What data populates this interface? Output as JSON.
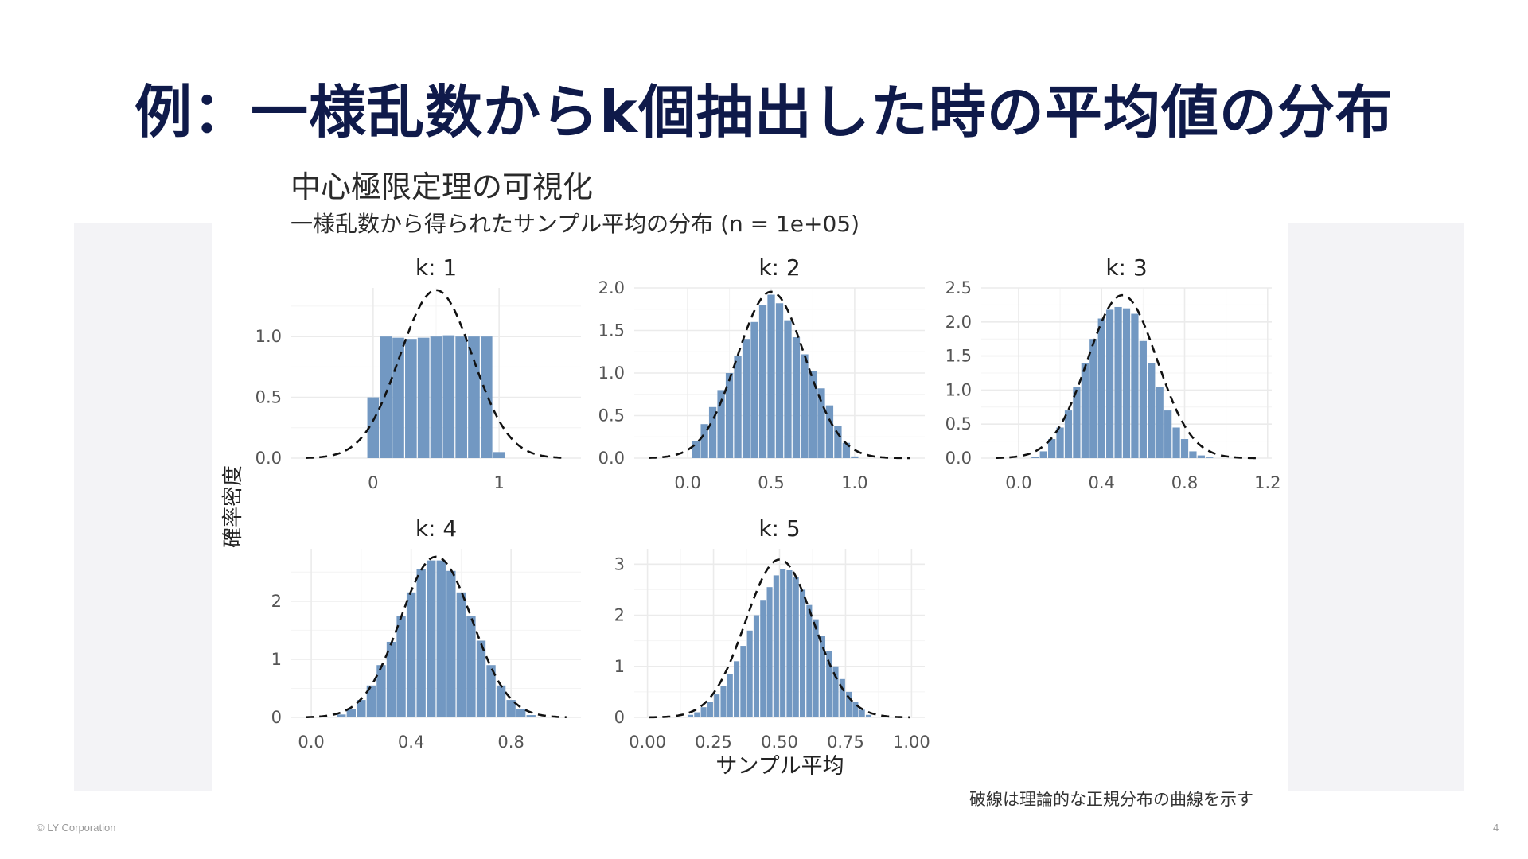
{
  "slide": {
    "title": "例：一様乱数からk個抽出した時の平均値の分布",
    "copyright": "© LY Corporation",
    "page_number": "4",
    "footnote": "破線は理論的な正規分布の曲線を示す"
  },
  "colors": {
    "bar": "#7298c2",
    "curve": "#111111",
    "grid": "#ebebeb",
    "title": "#0f1a4a",
    "panel": "#f3f3f6"
  },
  "chart_data": {
    "type": "bar",
    "title": "中心極限定理の可視化",
    "subtitle": "一様乱数から得られたサンプル平均の分布 (n = 1e+05)",
    "xlabel": "サンプル平均",
    "ylabel": "確率密度",
    "grid": true,
    "overlay": "normal density curve (dashed)",
    "facets": [
      {
        "label": "k: 1",
        "xlim": [
          -0.65,
          1.65
        ],
        "ylim": [
          0,
          1.4
        ],
        "xticks": [
          0,
          1
        ],
        "xtick_labels": [
          "0",
          "1"
        ],
        "yticks": [
          0,
          0.5,
          1.0
        ],
        "ytick_labels": [
          "0.0",
          "0.5",
          "1.0"
        ],
        "bin_width": 0.1,
        "bin_starts": [
          -0.05,
          0.05,
          0.15,
          0.25,
          0.35,
          0.45,
          0.55,
          0.65,
          0.75,
          0.85,
          0.95
        ],
        "densities": [
          0.5,
          1.0,
          0.99,
          0.98,
          0.99,
          1.0,
          1.01,
          1.0,
          1.0,
          1.0,
          0.05
        ],
        "normal_mean": 0.5,
        "normal_sd": 0.2887
      },
      {
        "label": "k: 2",
        "xlim": [
          -0.32,
          1.42
        ],
        "ylim": [
          0,
          2.0
        ],
        "xticks": [
          0,
          0.5,
          1.0
        ],
        "xtick_labels": [
          "0.0",
          "0.5",
          "1.0"
        ],
        "yticks": [
          0,
          0.5,
          1.0,
          1.5,
          2.0
        ],
        "ytick_labels": [
          "0.0",
          "0.5",
          "1.0",
          "1.5",
          "2.0"
        ],
        "bin_width": 0.05,
        "bin_starts": [
          0.025,
          0.075,
          0.125,
          0.175,
          0.225,
          0.275,
          0.325,
          0.375,
          0.425,
          0.475,
          0.525,
          0.575,
          0.625,
          0.675,
          0.725,
          0.775,
          0.825,
          0.875,
          0.925,
          0.975
        ],
        "densities": [
          0.2,
          0.4,
          0.6,
          0.8,
          1.0,
          1.2,
          1.4,
          1.6,
          1.8,
          1.92,
          1.82,
          1.62,
          1.42,
          1.22,
          1.02,
          0.82,
          0.62,
          0.38,
          0.18,
          0.02
        ],
        "normal_mean": 0.5,
        "normal_sd": 0.2041
      },
      {
        "label": "k: 3",
        "xlim": [
          -0.18,
          1.22
        ],
        "ylim": [
          0,
          2.5
        ],
        "xticks": [
          0,
          0.4,
          0.8,
          1.2
        ],
        "xtick_labels": [
          "0.0",
          "0.4",
          "0.8",
          "1.2"
        ],
        "yticks": [
          0,
          0.5,
          1.0,
          1.5,
          2.0,
          2.5
        ],
        "ytick_labels": [
          "0.0",
          "0.5",
          "1.0",
          "1.5",
          "2.0",
          "2.5"
        ],
        "bin_width": 0.04,
        "bin_starts": [
          0.06,
          0.1,
          0.14,
          0.18,
          0.22,
          0.26,
          0.3,
          0.34,
          0.38,
          0.42,
          0.46,
          0.5,
          0.54,
          0.58,
          0.62,
          0.66,
          0.7,
          0.74,
          0.78,
          0.82,
          0.86,
          0.9
        ],
        "densities": [
          0.02,
          0.1,
          0.28,
          0.45,
          0.7,
          1.05,
          1.4,
          1.75,
          2.05,
          2.18,
          2.22,
          2.2,
          2.12,
          1.72,
          1.4,
          1.05,
          0.7,
          0.45,
          0.28,
          0.1,
          0.04,
          0.01
        ],
        "normal_mean": 0.5,
        "normal_sd": 0.1667
      },
      {
        "label": "k: 4",
        "xlim": [
          -0.08,
          1.08
        ],
        "ylim": [
          0,
          2.9
        ],
        "xticks": [
          0,
          0.4,
          0.8
        ],
        "xtick_labels": [
          "0.0",
          "0.4",
          "0.8"
        ],
        "yticks": [
          0,
          1,
          2
        ],
        "ytick_labels": [
          "0",
          "1",
          "2"
        ],
        "bin_width": 0.04,
        "bin_starts": [
          0.1,
          0.14,
          0.18,
          0.22,
          0.26,
          0.3,
          0.34,
          0.38,
          0.42,
          0.46,
          0.5,
          0.54,
          0.58,
          0.62,
          0.66,
          0.7,
          0.74,
          0.78,
          0.82,
          0.86
        ],
        "densities": [
          0.05,
          0.15,
          0.3,
          0.55,
          0.9,
          1.3,
          1.75,
          2.15,
          2.55,
          2.7,
          2.7,
          2.52,
          2.15,
          1.75,
          1.32,
          0.9,
          0.55,
          0.3,
          0.15,
          0.04
        ],
        "normal_mean": 0.5,
        "normal_sd": 0.1443
      },
      {
        "label": "k: 5",
        "xlim": [
          -0.05,
          1.05
        ],
        "ylim": [
          0,
          3.3
        ],
        "xticks": [
          0,
          0.25,
          0.5,
          0.75,
          1.0
        ],
        "xtick_labels": [
          "0.00",
          "0.25",
          "0.50",
          "0.75",
          "1.00"
        ],
        "yticks": [
          0,
          1,
          2,
          3
        ],
        "ytick_labels": [
          "0",
          "1",
          "2",
          "3"
        ],
        "bin_width": 0.025,
        "bin_starts": [
          0.15,
          0.175,
          0.2,
          0.225,
          0.25,
          0.275,
          0.3,
          0.325,
          0.35,
          0.375,
          0.4,
          0.425,
          0.45,
          0.475,
          0.5,
          0.525,
          0.55,
          0.575,
          0.6,
          0.625,
          0.65,
          0.675,
          0.7,
          0.725,
          0.75,
          0.775,
          0.8,
          0.825
        ],
        "densities": [
          0.05,
          0.1,
          0.2,
          0.3,
          0.45,
          0.62,
          0.85,
          1.1,
          1.4,
          1.7,
          2.0,
          2.3,
          2.55,
          2.78,
          2.9,
          2.88,
          2.75,
          2.5,
          2.2,
          1.92,
          1.6,
          1.3,
          1.0,
          0.75,
          0.5,
          0.3,
          0.15,
          0.05
        ],
        "normal_mean": 0.5,
        "normal_sd": 0.1291
      }
    ]
  }
}
